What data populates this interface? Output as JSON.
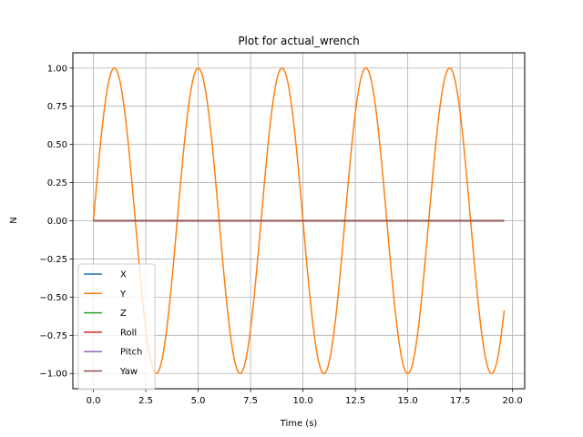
{
  "chart_data": {
    "type": "line",
    "title": "Plot for actual_wrench",
    "xlabel": "Time (s)",
    "ylabel": "N",
    "xlim": [
      -0.98,
      20.58
    ],
    "ylim": [
      -1.1,
      1.1
    ],
    "xticks": [
      0.0,
      2.5,
      5.0,
      7.5,
      10.0,
      12.5,
      15.0,
      17.5,
      20.0
    ],
    "xtick_labels": [
      "0.0",
      "2.5",
      "5.0",
      "7.5",
      "10.0",
      "12.5",
      "15.0",
      "17.5",
      "20.0"
    ],
    "yticks": [
      -1.0,
      -0.75,
      -0.5,
      -0.25,
      0.0,
      0.25,
      0.5,
      0.75,
      1.0
    ],
    "ytick_labels": [
      "−1.00",
      "−0.75",
      "−0.50",
      "−0.25",
      "0.00",
      "0.25",
      "0.50",
      "0.75",
      "1.00"
    ],
    "grid": true,
    "legend_position": "lower-left",
    "x_range": [
      0,
      19.6
    ],
    "series": [
      {
        "name": "X",
        "color": "#1f77b4",
        "function": "zero"
      },
      {
        "name": "Y",
        "color": "#ff7f0e",
        "function": "sin",
        "amplitude": 1.0,
        "period": 4.0
      },
      {
        "name": "Z",
        "color": "#2ca02c",
        "function": "zero"
      },
      {
        "name": "Roll",
        "color": "#d62728",
        "function": "zero"
      },
      {
        "name": "Pitch",
        "color": "#9467bd",
        "function": "zero"
      },
      {
        "name": "Yaw",
        "color": "#8c564b",
        "function": "zero"
      }
    ]
  }
}
